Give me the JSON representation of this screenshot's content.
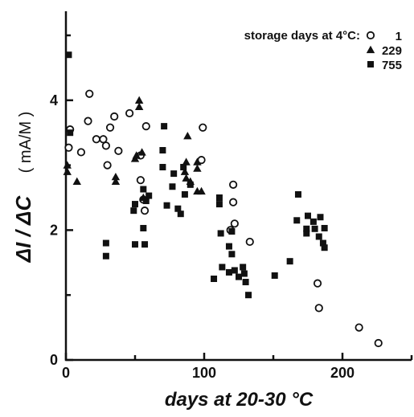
{
  "chart_data": {
    "type": "scatter",
    "title": "",
    "xlabel": "days at 20-30 °C",
    "ylabel": "ΔI / ΔC",
    "ylabel_unit": "( mA/M )",
    "xlim": [
      0,
      250
    ],
    "ylim": [
      0,
      5
    ],
    "xticks": [
      0,
      100,
      200
    ],
    "yticks": [
      0,
      2,
      4
    ],
    "grid": false,
    "legend": {
      "title": "storage days at 4°C:",
      "placement": "top-right"
    },
    "series": [
      {
        "name": "1",
        "marker": "open-circle",
        "points": [
          [
            2,
            3.27
          ],
          [
            3,
            3.55
          ],
          [
            11,
            3.2
          ],
          [
            17,
            4.1
          ],
          [
            16,
            3.68
          ],
          [
            22,
            3.4
          ],
          [
            27,
            3.4
          ],
          [
            29,
            3.3
          ],
          [
            30,
            3.0
          ],
          [
            32,
            3.58
          ],
          [
            35,
            3.75
          ],
          [
            38,
            3.22
          ],
          [
            46,
            3.8
          ],
          [
            54,
            3.15
          ],
          [
            54,
            2.77
          ],
          [
            56,
            2.47
          ],
          [
            57,
            2.3
          ],
          [
            58,
            3.6
          ],
          [
            98,
            3.08
          ],
          [
            99,
            3.58
          ],
          [
            121,
            2.7
          ],
          [
            121,
            2.43
          ],
          [
            119,
            2.0
          ],
          [
            122,
            2.1
          ],
          [
            133,
            1.82
          ],
          [
            182,
            1.18
          ],
          [
            183,
            0.8
          ],
          [
            212,
            0.5
          ],
          [
            226,
            0.26
          ]
        ]
      },
      {
        "name": "229",
        "marker": "filled-triangle",
        "points": [
          [
            1,
            3.0
          ],
          [
            1,
            2.9
          ],
          [
            8,
            2.75
          ],
          [
            36,
            2.82
          ],
          [
            36,
            2.75
          ],
          [
            50,
            3.1
          ],
          [
            51,
            3.15
          ],
          [
            53,
            4.0
          ],
          [
            53,
            3.9
          ],
          [
            55,
            3.2
          ],
          [
            56,
            2.5
          ],
          [
            88,
            3.45
          ],
          [
            87,
            3.05
          ],
          [
            86,
            2.9
          ],
          [
            87,
            2.8
          ],
          [
            90,
            2.75
          ],
          [
            95,
            3.05
          ],
          [
            95,
            2.95
          ],
          [
            95,
            2.6
          ],
          [
            98,
            2.6
          ]
        ]
      },
      {
        "name": "755",
        "marker": "filled-square",
        "points": [
          [
            2,
            4.7
          ],
          [
            3,
            3.5
          ],
          [
            29,
            1.8
          ],
          [
            29,
            1.6
          ],
          [
            49,
            2.3
          ],
          [
            50,
            2.4
          ],
          [
            50,
            1.78
          ],
          [
            56,
            2.63
          ],
          [
            56,
            2.03
          ],
          [
            57,
            1.78
          ],
          [
            58,
            2.45
          ],
          [
            60,
            2.53
          ],
          [
            71,
            3.6
          ],
          [
            70,
            3.23
          ],
          [
            70,
            2.97
          ],
          [
            73,
            2.38
          ],
          [
            78,
            2.87
          ],
          [
            77,
            2.67
          ],
          [
            81,
            2.33
          ],
          [
            83,
            2.25
          ],
          [
            86,
            2.55
          ],
          [
            90,
            2.7
          ],
          [
            85,
            2.97
          ],
          [
            107,
            1.25
          ],
          [
            111,
            2.5
          ],
          [
            111,
            2.4
          ],
          [
            112,
            1.95
          ],
          [
            113,
            1.43
          ],
          [
            118,
            1.35
          ],
          [
            118,
            1.75
          ],
          [
            120,
            1.98
          ],
          [
            120,
            1.63
          ],
          [
            122,
            1.38
          ],
          [
            125,
            1.28
          ],
          [
            128,
            1.43
          ],
          [
            129,
            1.33
          ],
          [
            130,
            1.2
          ],
          [
            132,
            1.0
          ],
          [
            151,
            1.3
          ],
          [
            162,
            1.52
          ],
          [
            167,
            2.15
          ],
          [
            168,
            2.55
          ],
          [
            174,
            1.95
          ],
          [
            174,
            2.02
          ],
          [
            175,
            2.22
          ],
          [
            179,
            2.13
          ],
          [
            180,
            2.02
          ],
          [
            183,
            1.9
          ],
          [
            184,
            2.2
          ],
          [
            186,
            1.8
          ],
          [
            187,
            1.73
          ],
          [
            187,
            2.03
          ]
        ]
      }
    ]
  }
}
